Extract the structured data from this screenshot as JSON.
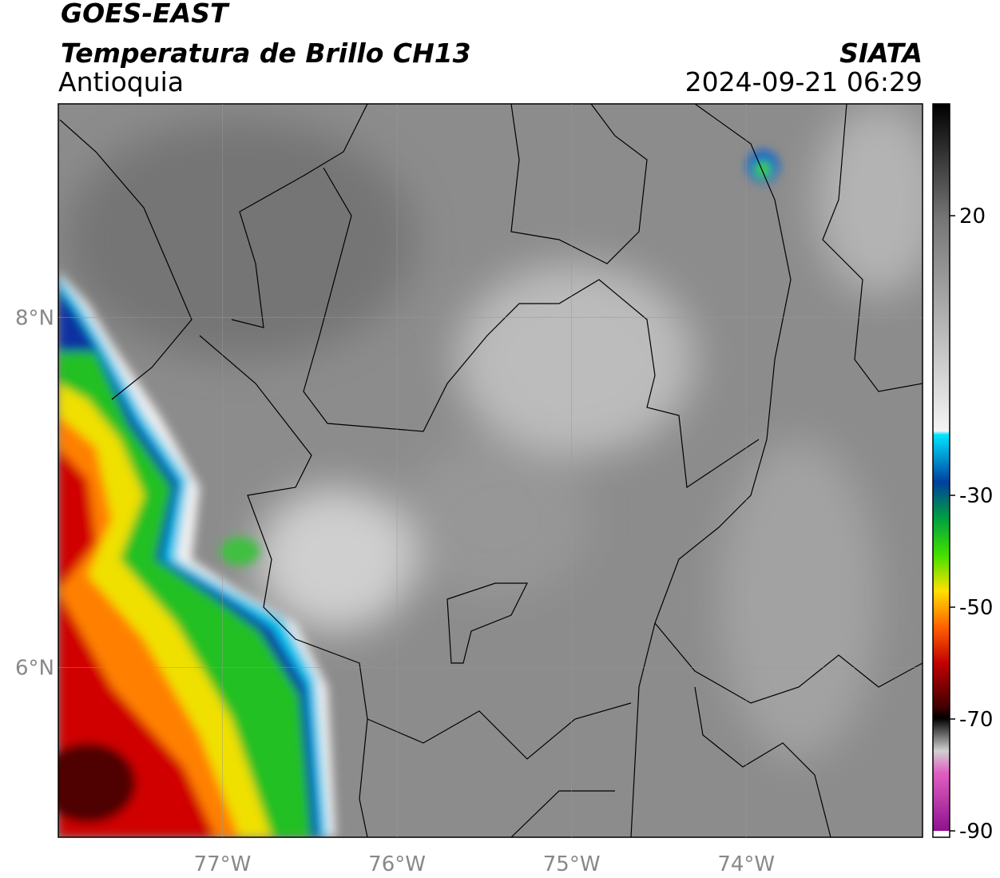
{
  "header": {
    "title": "GOES-EAST",
    "subtitle": "Temperatura de Brillo CH13",
    "region": "Antioquia",
    "source": "SIATA",
    "timestamp": "2024-09-21 06:29"
  },
  "map": {
    "xlim": [
      -77.94,
      -72.99
    ],
    "ylim": [
      5.03,
      9.22
    ],
    "xticks": [
      {
        "value": -77,
        "label": "77°W"
      },
      {
        "value": -76,
        "label": "76°W"
      },
      {
        "value": -75,
        "label": "75°W"
      },
      {
        "value": -74,
        "label": "74°W"
      }
    ],
    "yticks": [
      {
        "value": 6,
        "label": "6°N"
      },
      {
        "value": 8,
        "label": "8°N"
      }
    ],
    "grid": true
  },
  "colorbar": {
    "range": [
      -90,
      40
    ],
    "ticks": [
      20,
      -30,
      -50,
      -70,
      -90
    ]
  }
}
